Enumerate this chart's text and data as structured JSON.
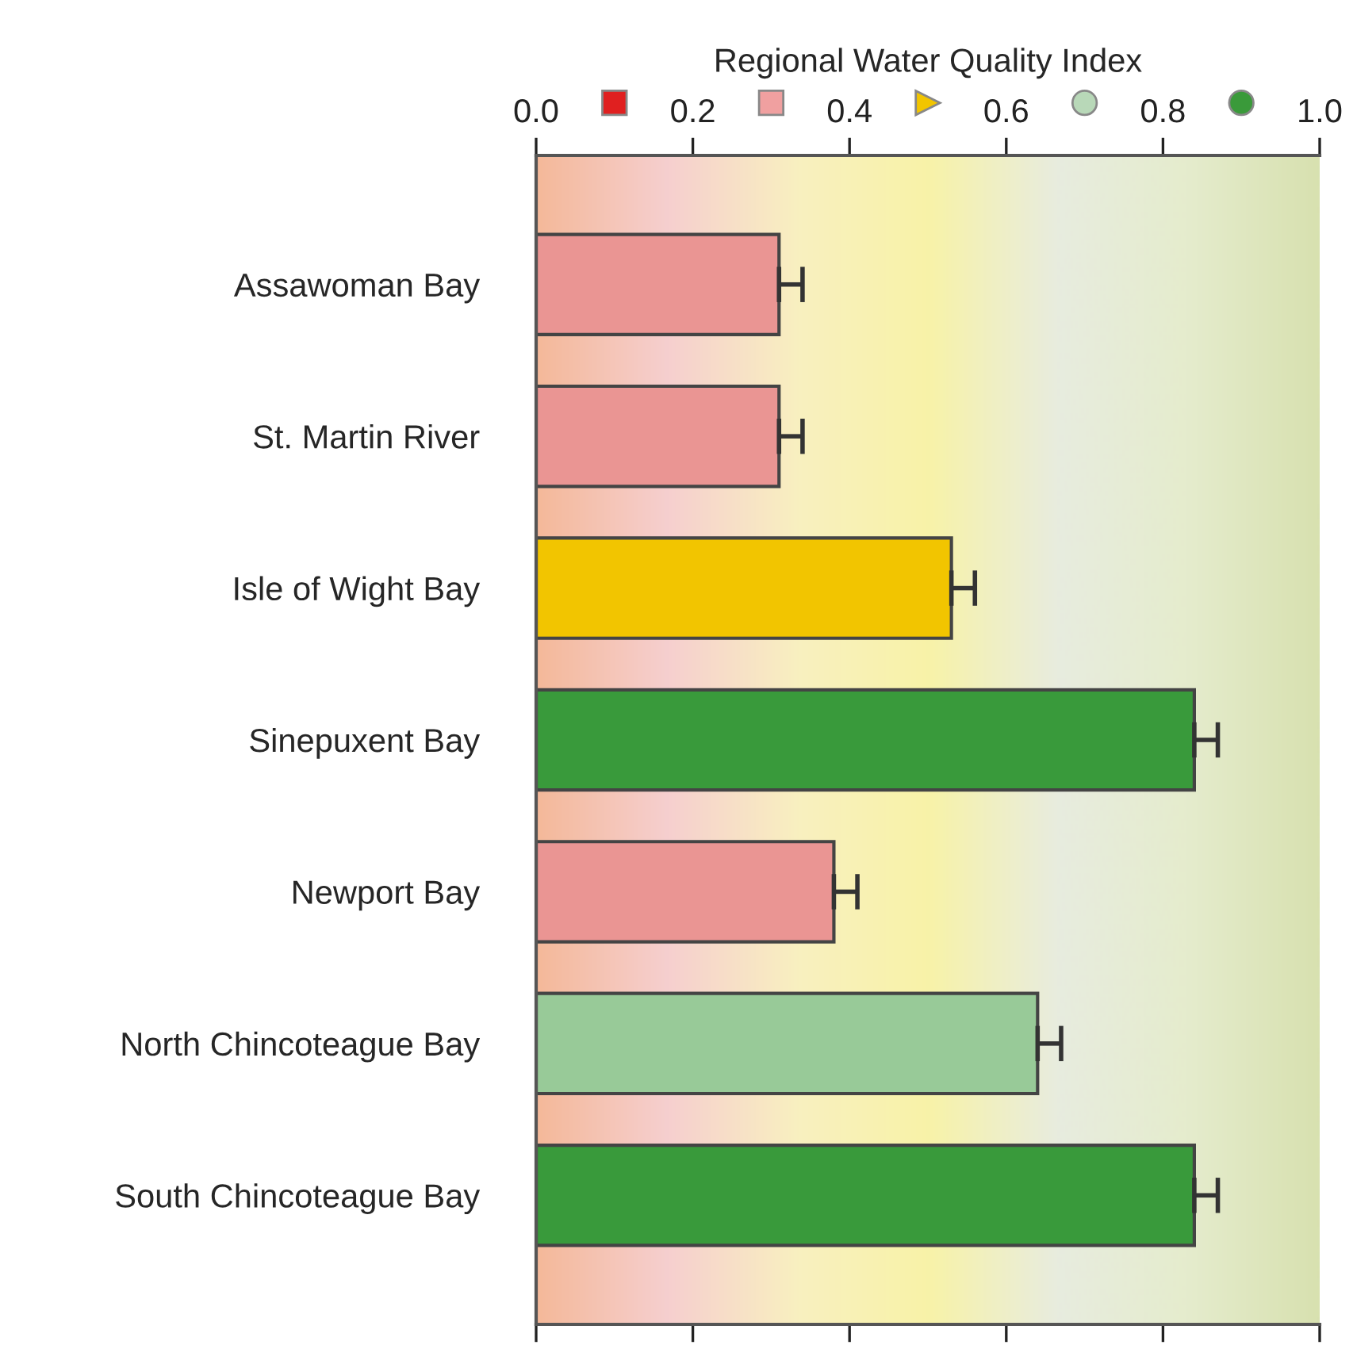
{
  "chart_data": {
    "type": "bar",
    "orientation": "horizontal",
    "xlabel": "Regional Water Quality Index",
    "categories": [
      "Assawoman Bay",
      "St. Martin River",
      "Isle of Wight Bay",
      "Sinepuxent Bay",
      "Newport Bay",
      "North Chincoteague Bay",
      "South Chincoteague Bay"
    ],
    "values": [
      0.31,
      0.31,
      0.53,
      0.84,
      0.38,
      0.64,
      0.84
    ],
    "errors": [
      0.03,
      0.03,
      0.03,
      0.03,
      0.03,
      0.03,
      0.03
    ],
    "colors": [
      "#ea9593",
      "#ea9593",
      "#f2c500",
      "#399a3b",
      "#ea9593",
      "#98ca98",
      "#399a3b"
    ],
    "xlim": [
      0.0,
      1.0
    ],
    "xticks": [
      "0.0",
      0.2,
      0.4,
      0.6,
      0.8,
      "1.0"
    ],
    "grid": false,
    "legend": false
  }
}
